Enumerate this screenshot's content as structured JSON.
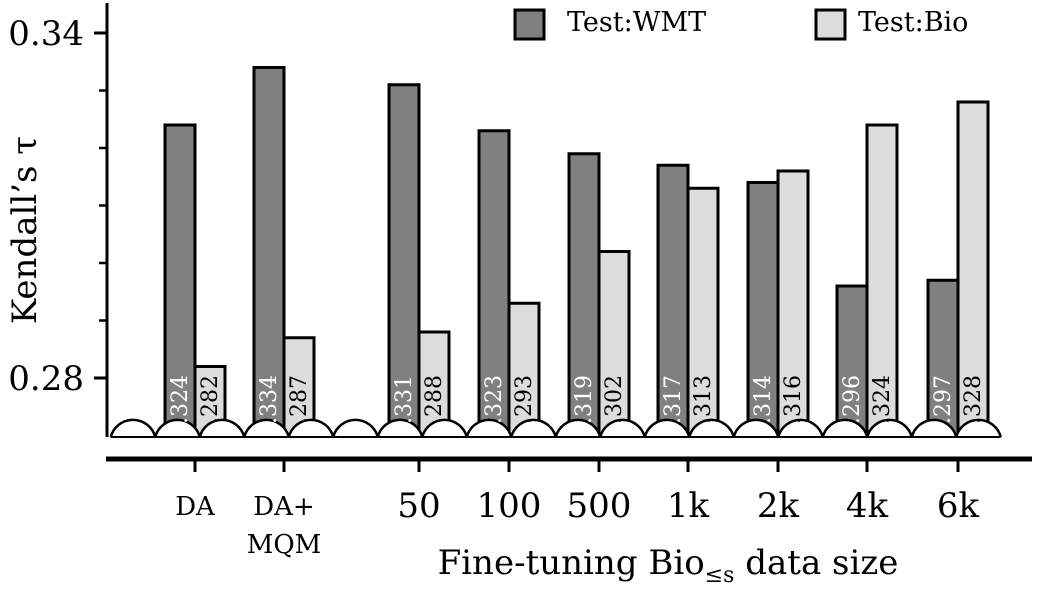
{
  "chart_data": {
    "type": "bar",
    "categories": [
      "DA",
      "DA+\nMQM",
      "50",
      "100",
      "500",
      "1k",
      "2k",
      "4k",
      "6k"
    ],
    "series": [
      {
        "name": "Test:WMT",
        "color": "#808080",
        "values": [
          0.324,
          0.334,
          0.331,
          0.323,
          0.319,
          0.317,
          0.314,
          0.296,
          0.297
        ],
        "labels": [
          ".324",
          ".334",
          ".331",
          ".323",
          ".319",
          ".317",
          ".314",
          ".296",
          ".297"
        ]
      },
      {
        "name": "Test:Bio",
        "color": "#dcdcdc",
        "values": [
          0.282,
          0.287,
          0.288,
          0.293,
          0.302,
          0.313,
          0.316,
          0.324,
          0.328
        ],
        "labels": [
          ".282",
          ".287",
          ".288",
          ".293",
          ".302",
          ".313",
          ".316",
          ".324",
          ".328"
        ]
      }
    ],
    "ylabel": "Kendall’s τ",
    "xlabel_prefix": "Fine-tuning Bio",
    "xlabel_subscript": "≤s",
    "xlabel_suffix": " data size",
    "yticks": [
      0.28,
      0.34
    ],
    "ytick_labels": [
      "0.28",
      "0.34"
    ],
    "ylim": [
      0.28,
      0.34
    ],
    "axis_break": true,
    "legend_position": "top"
  }
}
